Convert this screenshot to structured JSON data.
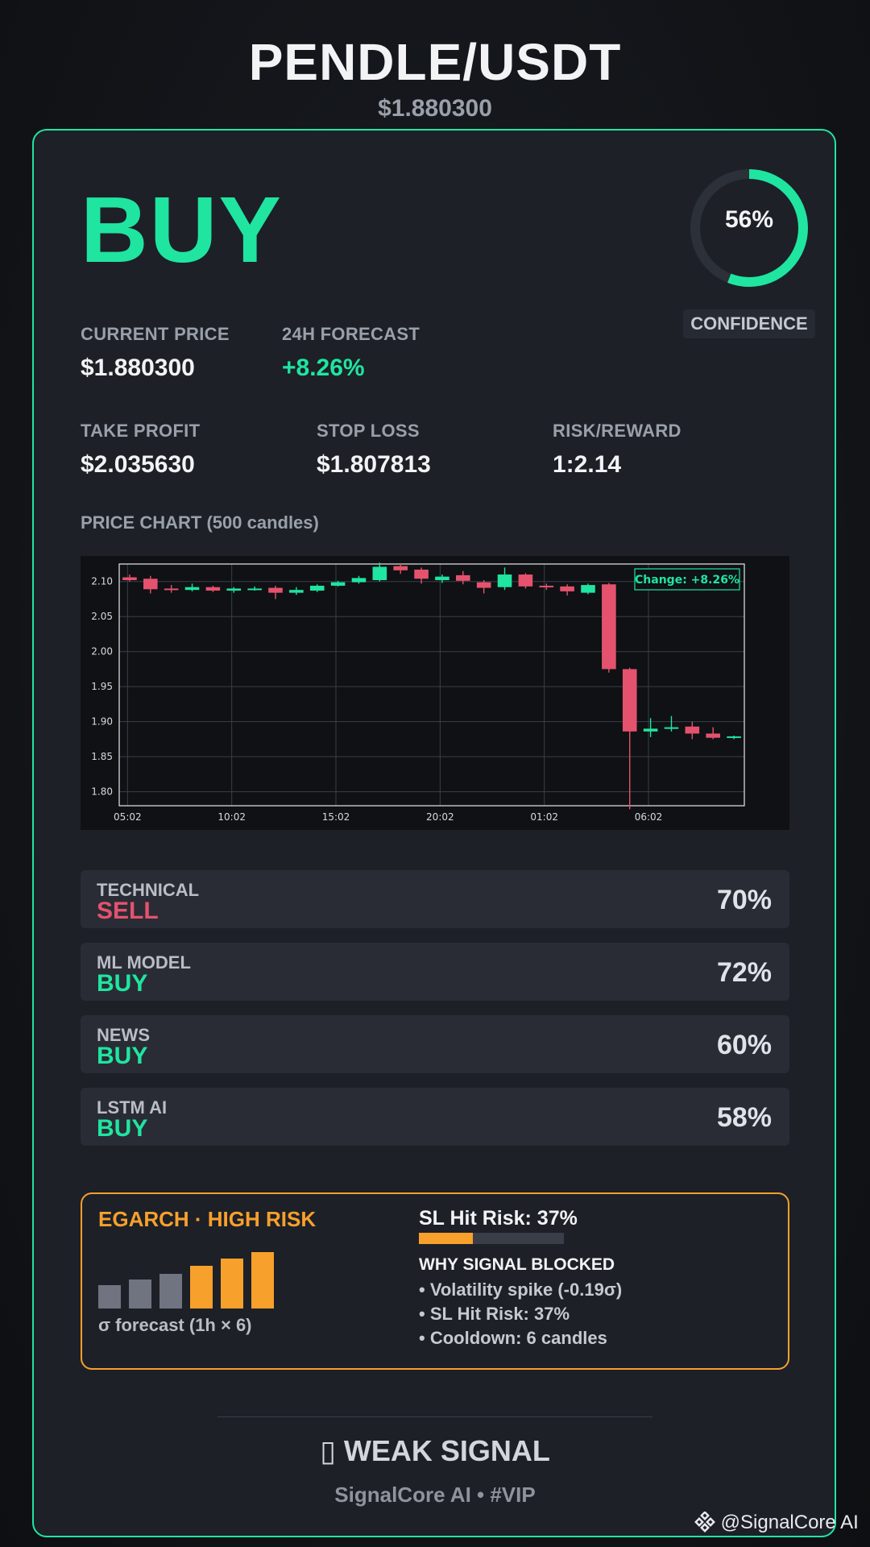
{
  "header": {
    "pair": "PENDLE/USDT",
    "price": "$1.880300"
  },
  "signal": {
    "label": "BUY",
    "color": "#1fe5a0"
  },
  "confidence": {
    "value_text": "56%",
    "fraction": 0.56,
    "label": "CONFIDENCE"
  },
  "stats": {
    "current_price": {
      "label": "CURRENT PRICE",
      "value": "$1.880300"
    },
    "forecast": {
      "label": "24H FORECAST",
      "value": "+8.26%"
    },
    "take_profit": {
      "label": "TAKE PROFIT",
      "value": "$2.035630"
    },
    "stop_loss": {
      "label": "STOP LOSS",
      "value": "$1.807813"
    },
    "risk_reward": {
      "label": "RISK/REWARD",
      "value": "1:2.14"
    }
  },
  "chart_section": {
    "title": "PRICE CHART (500 candles)"
  },
  "chart_data": {
    "type": "candlestick",
    "x_ticks": [
      "05:02",
      "10:02",
      "15:02",
      "20:02",
      "01:02",
      "06:02"
    ],
    "y_ticks": [
      1.8,
      1.85,
      1.9,
      1.95,
      2.0,
      2.05,
      2.1
    ],
    "ylim": [
      1.78,
      2.125
    ],
    "grid": true,
    "annotation": "Change: +8.26%",
    "candles": [
      {
        "o": 2.106,
        "h": 2.11,
        "l": 2.1,
        "c": 2.102
      },
      {
        "o": 2.104,
        "h": 2.108,
        "l": 2.083,
        "c": 2.089
      },
      {
        "o": 2.09,
        "h": 2.095,
        "l": 2.084,
        "c": 2.088
      },
      {
        "o": 2.088,
        "h": 2.097,
        "l": 2.086,
        "c": 2.092
      },
      {
        "o": 2.092,
        "h": 2.094,
        "l": 2.085,
        "c": 2.087
      },
      {
        "o": 2.087,
        "h": 2.092,
        "l": 2.084,
        "c": 2.09
      },
      {
        "o": 2.089,
        "h": 2.093,
        "l": 2.087,
        "c": 2.09
      },
      {
        "o": 2.091,
        "h": 2.094,
        "l": 2.075,
        "c": 2.084
      },
      {
        "o": 2.084,
        "h": 2.092,
        "l": 2.081,
        "c": 2.088
      },
      {
        "o": 2.087,
        "h": 2.096,
        "l": 2.085,
        "c": 2.094
      },
      {
        "o": 2.094,
        "h": 2.101,
        "l": 2.093,
        "c": 2.099
      },
      {
        "o": 2.099,
        "h": 2.108,
        "l": 2.097,
        "c": 2.105
      },
      {
        "o": 2.102,
        "h": 2.127,
        "l": 2.1,
        "c": 2.121
      },
      {
        "o": 2.122,
        "h": 2.125,
        "l": 2.111,
        "c": 2.116
      },
      {
        "o": 2.117,
        "h": 2.12,
        "l": 2.097,
        "c": 2.104
      },
      {
        "o": 2.102,
        "h": 2.11,
        "l": 2.098,
        "c": 2.107
      },
      {
        "o": 2.109,
        "h": 2.115,
        "l": 2.096,
        "c": 2.101
      },
      {
        "o": 2.099,
        "h": 2.102,
        "l": 2.083,
        "c": 2.091
      },
      {
        "o": 2.092,
        "h": 2.12,
        "l": 2.088,
        "c": 2.11
      },
      {
        "o": 2.11,
        "h": 2.112,
        "l": 2.09,
        "c": 2.093
      },
      {
        "o": 2.094,
        "h": 2.097,
        "l": 2.088,
        "c": 2.092
      },
      {
        "o": 2.093,
        "h": 2.096,
        "l": 2.08,
        "c": 2.086
      },
      {
        "o": 2.084,
        "h": 2.097,
        "l": 2.082,
        "c": 2.095
      },
      {
        "o": 2.096,
        "h": 2.098,
        "l": 1.97,
        "c": 1.975
      },
      {
        "o": 1.975,
        "h": 1.977,
        "l": 1.775,
        "c": 1.886
      },
      {
        "o": 1.886,
        "h": 1.905,
        "l": 1.878,
        "c": 1.89
      },
      {
        "o": 1.89,
        "h": 1.908,
        "l": 1.886,
        "c": 1.892
      },
      {
        "o": 1.893,
        "h": 1.9,
        "l": 1.875,
        "c": 1.883
      },
      {
        "o": 1.883,
        "h": 1.892,
        "l": 1.875,
        "c": 1.877
      },
      {
        "o": 1.877,
        "h": 1.88,
        "l": 1.875,
        "c": 1.879
      }
    ]
  },
  "model_rows": [
    {
      "label": "TECHNICAL",
      "signal": "SELL",
      "signal_color": "#e5526e",
      "pct": "70%"
    },
    {
      "label": "ML MODEL",
      "signal": "BUY",
      "signal_color": "#1fe5a0",
      "pct": "72%"
    },
    {
      "label": "NEWS",
      "signal": "BUY",
      "signal_color": "#1fe5a0",
      "pct": "60%"
    },
    {
      "label": "LSTM AI",
      "signal": "BUY",
      "signal_color": "#1fe5a0",
      "pct": "58%"
    }
  ],
  "risk": {
    "title": "EGARCH · HIGH RISK",
    "sigma_label": "σ forecast (1h × 6)",
    "bars": [
      {
        "level": 0.42,
        "color": "#707480"
      },
      {
        "level": 0.52,
        "color": "#707480"
      },
      {
        "level": 0.62,
        "color": "#707480"
      },
      {
        "level": 0.76,
        "color": "#f7a02c"
      },
      {
        "level": 0.88,
        "color": "#f7a02c"
      },
      {
        "level": 1.0,
        "color": "#f7a02c"
      }
    ],
    "sl_hit_title": "SL Hit Risk: 37%",
    "sl_hit_fraction": 0.37,
    "why_title": "WHY SIGNAL BLOCKED",
    "why_items": [
      "• Volatility spike (-0.19σ)",
      "• SL Hit Risk: 37%",
      "• Cooldown: 6 candles"
    ]
  },
  "footer": {
    "weak_signal": "▯ WEAK SIGNAL",
    "brand": "SignalCore AI • #VIP",
    "watermark": "@SignalCore AI",
    "watermark_icon": "binance-diamond-icon"
  }
}
